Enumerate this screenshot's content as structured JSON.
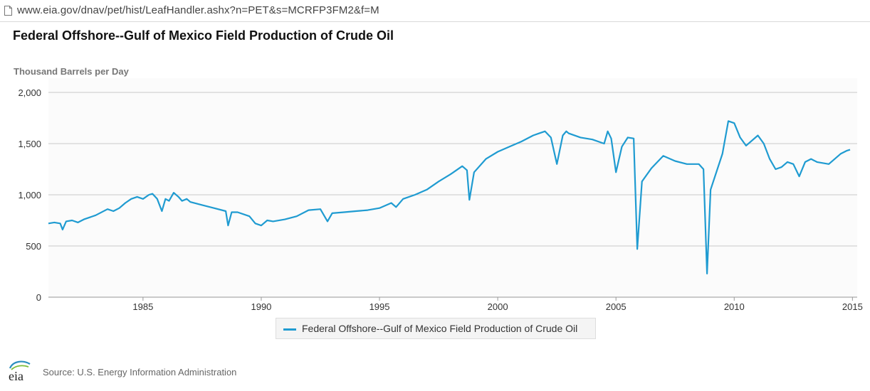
{
  "browser": {
    "url": "www.eia.gov/dnav/pet/hist/LeafHandler.ashx?n=PET&s=MCRFP3FM2&f=M"
  },
  "header": {
    "title": "Federal Offshore--Gulf of Mexico Field Production of Crude Oil",
    "unit_label": "Thousand Barrels per Day"
  },
  "legend": {
    "label": "Federal Offshore--Gulf of Mexico Field Production of Crude Oil"
  },
  "footer": {
    "source": "Source: U.S. Energy Information Administration",
    "logo_text": "eia"
  },
  "colors": {
    "series": "#1f9bd1",
    "grid": "#c8c8c8",
    "plot_background": "#fbfbfb"
  },
  "chart_data": {
    "type": "line",
    "title": "Federal Offshore--Gulf of Mexico Field Production of Crude Oil",
    "ylabel": "Thousand Barrels per Day",
    "xlabel": "",
    "xlim": [
      1981.0,
      2015.2
    ],
    "ylim": [
      0,
      2000
    ],
    "grid": true,
    "legend_position": "bottom",
    "x_ticks": [
      1985,
      1990,
      1995,
      2000,
      2005,
      2010,
      2015
    ],
    "x_tick_labels": [
      "1985",
      "1990",
      "1995",
      "2000",
      "2005",
      "2010",
      "2015"
    ],
    "y_ticks": [
      0,
      500,
      1000,
      1500,
      2000
    ],
    "y_tick_labels": [
      "0",
      "500",
      "1,000",
      "1,500",
      "2,000"
    ],
    "series": [
      {
        "name": "Federal Offshore--Gulf of Mexico Field Production of Crude Oil",
        "x": [
          1981.0,
          1981.25,
          1981.5,
          1981.6,
          1981.75,
          1982.0,
          1982.25,
          1982.5,
          1983.0,
          1983.5,
          1983.75,
          1984.0,
          1984.25,
          1984.5,
          1984.75,
          1985.0,
          1985.25,
          1985.4,
          1985.6,
          1985.8,
          1985.95,
          1986.1,
          1986.3,
          1986.5,
          1986.65,
          1986.85,
          1987.0,
          1987.5,
          1988.0,
          1988.5,
          1988.6,
          1988.75,
          1989.0,
          1989.5,
          1989.75,
          1990.0,
          1990.25,
          1990.5,
          1991.0,
          1991.5,
          1992.0,
          1992.5,
          1992.8,
          1993.0,
          1993.5,
          1994.0,
          1994.5,
          1995.0,
          1995.5,
          1995.7,
          1996.0,
          1996.5,
          1997.0,
          1997.5,
          1998.0,
          1998.5,
          1998.7,
          1998.8,
          1999.0,
          1999.5,
          2000.0,
          2000.5,
          2001.0,
          2001.5,
          2001.75,
          2002.0,
          2002.25,
          2002.5,
          2002.75,
          2002.9,
          2003.0,
          2003.5,
          2004.0,
          2004.5,
          2004.65,
          2004.8,
          2005.0,
          2005.25,
          2005.5,
          2005.75,
          2005.9,
          2006.1,
          2006.5,
          2007.0,
          2007.5,
          2008.0,
          2008.5,
          2008.7,
          2008.85,
          2009.0,
          2009.5,
          2009.75,
          2010.0,
          2010.25,
          2010.5,
          2011.0,
          2011.25,
          2011.5,
          2011.75,
          2012.0,
          2012.25,
          2012.5,
          2012.75,
          2013.0,
          2013.25,
          2013.5,
          2014.0,
          2014.5,
          2014.75,
          2014.9
        ],
        "values": [
          720,
          730,
          720,
          660,
          740,
          750,
          730,
          760,
          800,
          860,
          840,
          870,
          920,
          960,
          980,
          960,
          1000,
          1010,
          960,
          840,
          960,
          940,
          1020,
          980,
          940,
          960,
          930,
          900,
          870,
          840,
          700,
          830,
          830,
          790,
          720,
          700,
          750,
          740,
          760,
          790,
          850,
          860,
          740,
          820,
          830,
          840,
          850,
          870,
          920,
          880,
          960,
          1000,
          1050,
          1130,
          1200,
          1280,
          1240,
          950,
          1220,
          1350,
          1420,
          1470,
          1520,
          1580,
          1600,
          1620,
          1560,
          1300,
          1580,
          1620,
          1600,
          1560,
          1540,
          1500,
          1620,
          1550,
          1220,
          1470,
          1560,
          1550,
          470,
          1130,
          1260,
          1380,
          1330,
          1300,
          1300,
          1250,
          230,
          1050,
          1400,
          1720,
          1700,
          1560,
          1480,
          1580,
          1500,
          1350,
          1250,
          1270,
          1320,
          1300,
          1180,
          1320,
          1350,
          1320,
          1300,
          1400,
          1430,
          1440
        ]
      }
    ]
  }
}
